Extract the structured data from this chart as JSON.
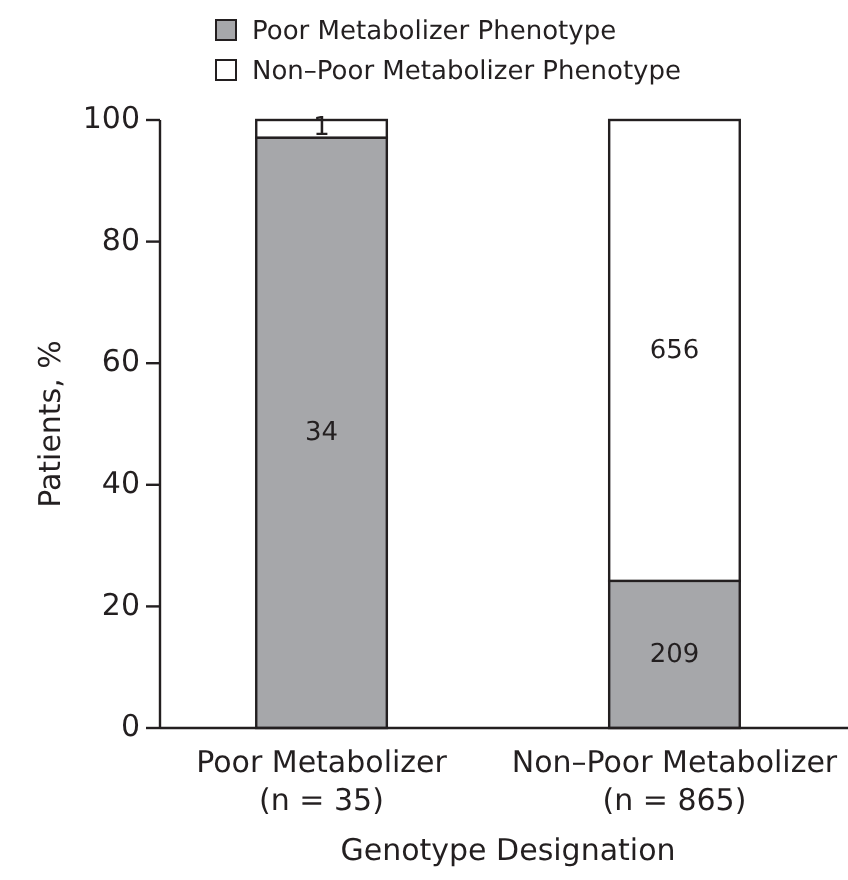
{
  "chart_data": {
    "type": "bar",
    "stacked": true,
    "xlabel": "Genotype Designation",
    "ylabel": "Patients, %",
    "categories": [
      "Poor Metabolizer\n(n = 35)",
      "Non–Poor Metabolizer\n(n = 865)"
    ],
    "series": [
      {
        "name": "Poor Metabolizer Phenotype",
        "color": "#a6a7aa",
        "values": [
          97.1,
          24.2
        ]
      },
      {
        "name": "Non–Poor Metabolizer Phenotype",
        "color": "#ffffff",
        "values": [
          2.9,
          75.8
        ]
      }
    ],
    "annotations": [
      "34",
      "1",
      "209",
      "656"
    ],
    "ylim": [
      0,
      100
    ],
    "yticks": [
      0,
      20,
      40,
      60,
      80,
      100
    ],
    "legend": "top",
    "grid": false
  }
}
